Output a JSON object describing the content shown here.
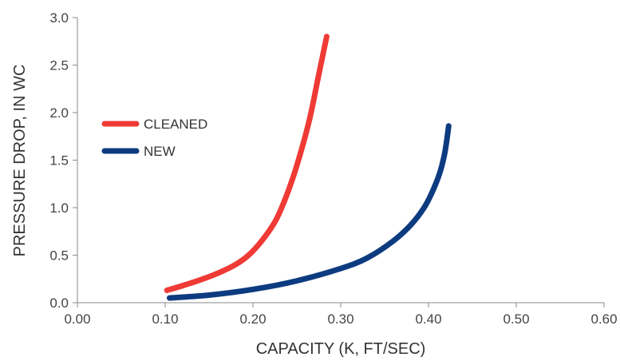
{
  "chart_data": {
    "type": "line",
    "xlabel": "CAPACITY (K, FT/SEC)",
    "ylabel": "PRESSURE DROP, IN WC",
    "xlim": [
      0.0,
      0.6
    ],
    "ylim": [
      0.0,
      3.0
    ],
    "x_ticks": [
      "0.00",
      "0.10",
      "0.20",
      "0.30",
      "0.40",
      "0.50",
      "0.60"
    ],
    "y_ticks": [
      "0.0",
      "0.5",
      "1.0",
      "1.5",
      "2.0",
      "2.5",
      "3.0"
    ],
    "grid": false,
    "legend_position": "left",
    "series": [
      {
        "name": "CLEANED",
        "color": "#ef3a35",
        "points": [
          [
            0.102,
            0.13
          ],
          [
            0.12,
            0.18
          ],
          [
            0.14,
            0.24
          ],
          [
            0.16,
            0.31
          ],
          [
            0.18,
            0.4
          ],
          [
            0.195,
            0.5
          ],
          [
            0.21,
            0.65
          ],
          [
            0.225,
            0.85
          ],
          [
            0.235,
            1.05
          ],
          [
            0.245,
            1.3
          ],
          [
            0.255,
            1.6
          ],
          [
            0.265,
            1.95
          ],
          [
            0.275,
            2.4
          ],
          [
            0.284,
            2.8
          ]
        ]
      },
      {
        "name": "NEW",
        "color": "#0d3b80",
        "points": [
          [
            0.105,
            0.05
          ],
          [
            0.15,
            0.08
          ],
          [
            0.2,
            0.14
          ],
          [
            0.25,
            0.23
          ],
          [
            0.3,
            0.36
          ],
          [
            0.33,
            0.47
          ],
          [
            0.36,
            0.65
          ],
          [
            0.38,
            0.82
          ],
          [
            0.395,
            1.0
          ],
          [
            0.405,
            1.18
          ],
          [
            0.413,
            1.37
          ],
          [
            0.418,
            1.55
          ],
          [
            0.421,
            1.72
          ],
          [
            0.423,
            1.86
          ]
        ]
      }
    ]
  }
}
